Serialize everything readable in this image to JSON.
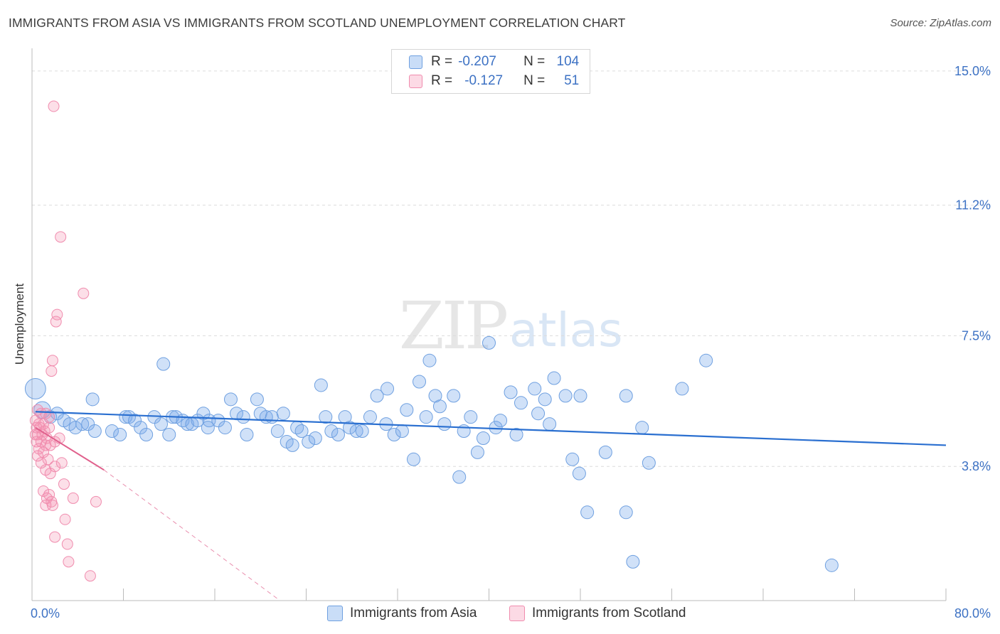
{
  "header": {
    "title": "IMMIGRANTS FROM ASIA VS IMMIGRANTS FROM SCOTLAND UNEMPLOYMENT CORRELATION CHART",
    "source": "Source: ZipAtlas.com"
  },
  "watermark": {
    "zip": "ZIP",
    "atlas": "atlas"
  },
  "legend_top": {
    "rows": [
      {
        "r_label": "R =",
        "r_value": "-0.207",
        "n_label": "N =",
        "n_value": "104"
      },
      {
        "r_label": "R =",
        "r_value": "-0.127",
        "n_label": "N =",
        "n_value": "51"
      }
    ]
  },
  "legend_bottom": {
    "items": [
      "Immigrants from Asia",
      "Immigrants from Scotland"
    ]
  },
  "colors": {
    "asia_fill": "rgba(120,170,235,0.35)",
    "asia_stroke": "#6fa0e0",
    "asia_line": "#2a6fd0",
    "scot_fill": "rgba(245,150,180,0.30)",
    "scot_stroke": "#f08cae",
    "scot_line": "#e0608c",
    "tick_text": "#3d72c4",
    "grid": "#dcdcdc"
  },
  "chart_data": {
    "type": "scatter",
    "title": "IMMIGRANTS FROM ASIA VS IMMIGRANTS FROM SCOTLAND UNEMPLOYMENT CORRELATION CHART",
    "xlabel": "",
    "ylabel": "Unemployment",
    "xlim": [
      0,
      80
    ],
    "ylim": [
      0,
      15.5
    ],
    "x_tick_labels": [
      "0.0%",
      "80.0%"
    ],
    "y_ticks": [
      3.8,
      7.5,
      11.2,
      15.0
    ],
    "y_tick_labels": [
      "3.8%",
      "7.5%",
      "11.2%",
      "15.0%"
    ],
    "grid": true,
    "legend_placement": "top-center",
    "series": [
      {
        "name": "Immigrants from Asia",
        "trend": {
          "x": [
            0.3,
            80
          ],
          "y": [
            5.35,
            4.4
          ]
        },
        "points": [
          {
            "x": 0.3,
            "y": 6.0,
            "s": 1.6
          },
          {
            "x": 0.9,
            "y": 5.4,
            "s": 1.3
          },
          {
            "x": 1.6,
            "y": 5.2
          },
          {
            "x": 2.2,
            "y": 5.3
          },
          {
            "x": 2.8,
            "y": 5.1
          },
          {
            "x": 3.3,
            "y": 5.0
          },
          {
            "x": 3.8,
            "y": 4.9
          },
          {
            "x": 4.4,
            "y": 5.0
          },
          {
            "x": 4.9,
            "y": 5.0
          },
          {
            "x": 5.5,
            "y": 4.8
          },
          {
            "x": 5.3,
            "y": 5.7
          },
          {
            "x": 7.0,
            "y": 4.8
          },
          {
            "x": 7.7,
            "y": 4.7
          },
          {
            "x": 8.2,
            "y": 5.2
          },
          {
            "x": 8.5,
            "y": 5.2
          },
          {
            "x": 9.0,
            "y": 5.1
          },
          {
            "x": 9.5,
            "y": 4.9
          },
          {
            "x": 10.0,
            "y": 4.7
          },
          {
            "x": 10.7,
            "y": 5.2
          },
          {
            "x": 11.3,
            "y": 5.0
          },
          {
            "x": 11.5,
            "y": 6.7
          },
          {
            "x": 12.0,
            "y": 4.7
          },
          {
            "x": 12.3,
            "y": 5.2
          },
          {
            "x": 12.6,
            "y": 5.2
          },
          {
            "x": 13.2,
            "y": 5.1
          },
          {
            "x": 13.6,
            "y": 5.0
          },
          {
            "x": 14.0,
            "y": 5.0
          },
          {
            "x": 14.5,
            "y": 5.1
          },
          {
            "x": 15.0,
            "y": 5.3
          },
          {
            "x": 15.5,
            "y": 5.1
          },
          {
            "x": 15.4,
            "y": 4.9
          },
          {
            "x": 16.3,
            "y": 5.1
          },
          {
            "x": 16.9,
            "y": 4.9
          },
          {
            "x": 17.4,
            "y": 5.7
          },
          {
            "x": 17.9,
            "y": 5.3
          },
          {
            "x": 18.5,
            "y": 5.2
          },
          {
            "x": 18.8,
            "y": 4.7
          },
          {
            "x": 19.7,
            "y": 5.7
          },
          {
            "x": 20.0,
            "y": 5.3
          },
          {
            "x": 20.5,
            "y": 5.2
          },
          {
            "x": 21.0,
            "y": 5.2
          },
          {
            "x": 21.5,
            "y": 4.8
          },
          {
            "x": 22.0,
            "y": 5.3
          },
          {
            "x": 22.3,
            "y": 4.5
          },
          {
            "x": 22.8,
            "y": 4.4
          },
          {
            "x": 23.2,
            "y": 4.9
          },
          {
            "x": 23.6,
            "y": 4.8
          },
          {
            "x": 24.2,
            "y": 4.5
          },
          {
            "x": 24.8,
            "y": 4.6
          },
          {
            "x": 25.3,
            "y": 6.1
          },
          {
            "x": 25.7,
            "y": 5.2
          },
          {
            "x": 26.2,
            "y": 4.8
          },
          {
            "x": 26.8,
            "y": 4.7
          },
          {
            "x": 27.4,
            "y": 5.2
          },
          {
            "x": 27.8,
            "y": 4.9
          },
          {
            "x": 28.4,
            "y": 4.8
          },
          {
            "x": 28.9,
            "y": 4.8
          },
          {
            "x": 29.6,
            "y": 5.2
          },
          {
            "x": 30.2,
            "y": 5.8
          },
          {
            "x": 31.1,
            "y": 6.0
          },
          {
            "x": 31.0,
            "y": 5.0
          },
          {
            "x": 31.7,
            "y": 4.7
          },
          {
            "x": 32.4,
            "y": 4.8
          },
          {
            "x": 32.8,
            "y": 5.4
          },
          {
            "x": 33.4,
            "y": 4.0
          },
          {
            "x": 33.9,
            "y": 6.2
          },
          {
            "x": 34.5,
            "y": 5.2
          },
          {
            "x": 34.8,
            "y": 6.8
          },
          {
            "x": 35.3,
            "y": 5.8
          },
          {
            "x": 35.7,
            "y": 5.5
          },
          {
            "x": 36.1,
            "y": 5.0
          },
          {
            "x": 36.9,
            "y": 5.8
          },
          {
            "x": 37.4,
            "y": 3.5
          },
          {
            "x": 37.8,
            "y": 4.8
          },
          {
            "x": 38.4,
            "y": 5.2
          },
          {
            "x": 39.0,
            "y": 4.2
          },
          {
            "x": 39.5,
            "y": 4.6
          },
          {
            "x": 40.0,
            "y": 7.3
          },
          {
            "x": 40.6,
            "y": 4.9
          },
          {
            "x": 41.0,
            "y": 5.1
          },
          {
            "x": 41.9,
            "y": 5.9
          },
          {
            "x": 42.4,
            "y": 4.7
          },
          {
            "x": 42.8,
            "y": 5.6
          },
          {
            "x": 44.0,
            "y": 6.0
          },
          {
            "x": 44.3,
            "y": 5.3
          },
          {
            "x": 44.9,
            "y": 5.7
          },
          {
            "x": 45.3,
            "y": 5.0
          },
          {
            "x": 45.7,
            "y": 6.3
          },
          {
            "x": 46.7,
            "y": 5.8
          },
          {
            "x": 47.3,
            "y": 4.0
          },
          {
            "x": 48.0,
            "y": 5.8
          },
          {
            "x": 47.9,
            "y": 3.6
          },
          {
            "x": 48.6,
            "y": 2.5
          },
          {
            "x": 50.2,
            "y": 4.2
          },
          {
            "x": 52.0,
            "y": 5.8
          },
          {
            "x": 52.0,
            "y": 2.5
          },
          {
            "x": 52.6,
            "y": 1.1
          },
          {
            "x": 53.4,
            "y": 4.9
          },
          {
            "x": 54.0,
            "y": 3.9
          },
          {
            "x": 56.9,
            "y": 6.0
          },
          {
            "x": 59.0,
            "y": 6.8
          },
          {
            "x": 70.0,
            "y": 1.0
          }
        ]
      },
      {
        "name": "Immigrants from Scotland",
        "trend_solid": {
          "x": [
            0.3,
            6.3
          ],
          "y": [
            4.9,
            3.7
          ]
        },
        "trend_dashed": {
          "x": [
            6.3,
            21.5
          ],
          "y": [
            3.7,
            0.05
          ]
        },
        "points": [
          {
            "x": 1.9,
            "y": 14.0
          },
          {
            "x": 2.5,
            "y": 10.3
          },
          {
            "x": 4.5,
            "y": 8.7
          },
          {
            "x": 2.2,
            "y": 8.1
          },
          {
            "x": 2.1,
            "y": 7.9
          },
          {
            "x": 1.8,
            "y": 6.8
          },
          {
            "x": 1.7,
            "y": 6.5
          },
          {
            "x": 0.5,
            "y": 5.4
          },
          {
            "x": 0.8,
            "y": 5.3
          },
          {
            "x": 1.2,
            "y": 5.3
          },
          {
            "x": 1.5,
            "y": 5.2
          },
          {
            "x": 0.3,
            "y": 5.1
          },
          {
            "x": 0.6,
            "y": 5.0
          },
          {
            "x": 1.0,
            "y": 5.0
          },
          {
            "x": 0.4,
            "y": 4.9
          },
          {
            "x": 0.7,
            "y": 4.9
          },
          {
            "x": 1.1,
            "y": 4.8
          },
          {
            "x": 1.5,
            "y": 4.9
          },
          {
            "x": 0.3,
            "y": 4.7
          },
          {
            "x": 0.5,
            "y": 4.7
          },
          {
            "x": 0.9,
            "y": 4.7
          },
          {
            "x": 1.3,
            "y": 4.6
          },
          {
            "x": 0.4,
            "y": 4.5
          },
          {
            "x": 0.8,
            "y": 4.5
          },
          {
            "x": 1.2,
            "y": 4.4
          },
          {
            "x": 2.0,
            "y": 4.5
          },
          {
            "x": 0.6,
            "y": 4.3
          },
          {
            "x": 1.0,
            "y": 4.2
          },
          {
            "x": 1.6,
            "y": 4.4
          },
          {
            "x": 2.4,
            "y": 4.6
          },
          {
            "x": 0.5,
            "y": 4.1
          },
          {
            "x": 1.4,
            "y": 4.0
          },
          {
            "x": 0.8,
            "y": 3.9
          },
          {
            "x": 2.0,
            "y": 3.8
          },
          {
            "x": 2.6,
            "y": 3.9
          },
          {
            "x": 1.2,
            "y": 3.7
          },
          {
            "x": 1.6,
            "y": 3.6
          },
          {
            "x": 2.8,
            "y": 3.3
          },
          {
            "x": 1.0,
            "y": 3.1
          },
          {
            "x": 1.5,
            "y": 3.0
          },
          {
            "x": 1.3,
            "y": 2.9
          },
          {
            "x": 1.7,
            "y": 2.8
          },
          {
            "x": 1.2,
            "y": 2.7
          },
          {
            "x": 1.8,
            "y": 2.7
          },
          {
            "x": 3.6,
            "y": 2.9
          },
          {
            "x": 5.6,
            "y": 2.8
          },
          {
            "x": 2.9,
            "y": 2.3
          },
          {
            "x": 2.0,
            "y": 1.8
          },
          {
            "x": 3.1,
            "y": 1.6
          },
          {
            "x": 3.2,
            "y": 1.1
          },
          {
            "x": 5.1,
            "y": 0.7
          }
        ]
      }
    ]
  }
}
